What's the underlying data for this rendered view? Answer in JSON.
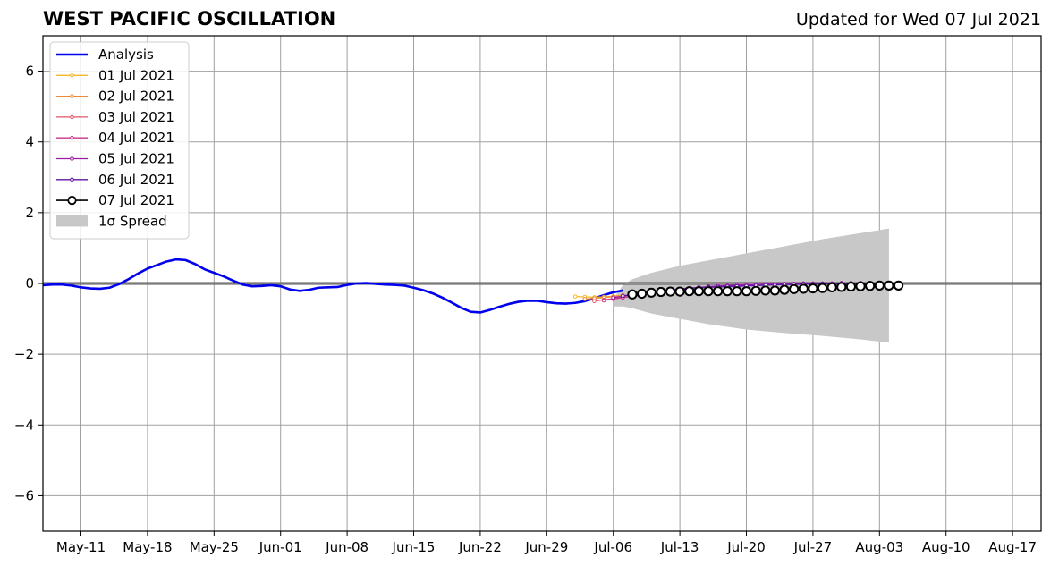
{
  "header": {
    "title": "WEST PACIFIC OSCILLATION",
    "updated": "Updated for Wed 07 Jul 2021"
  },
  "chart_data": {
    "type": "line",
    "title": "WEST PACIFIC OSCILLATION",
    "xlabel": "",
    "ylabel": "",
    "ylim": [
      -7,
      7
    ],
    "yticks": [
      -6,
      -4,
      -2,
      0,
      2,
      4,
      6
    ],
    "xlim": [
      "2021-05-07",
      "2021-08-20"
    ],
    "xtick_dates": [
      "2021-05-11",
      "2021-05-18",
      "2021-05-25",
      "2021-06-01",
      "2021-06-08",
      "2021-06-15",
      "2021-06-22",
      "2021-06-29",
      "2021-07-06",
      "2021-07-13",
      "2021-07-20",
      "2021-07-27",
      "2021-08-03",
      "2021-08-10",
      "2021-08-17"
    ],
    "xtick_labels": [
      "May-11",
      "May-18",
      "May-25",
      "Jun-01",
      "Jun-08",
      "Jun-15",
      "Jun-22",
      "Jun-29",
      "Jul-06",
      "Jul-13",
      "Jul-20",
      "Jul-27",
      "Aug-03",
      "Aug-10",
      "Aug-17"
    ],
    "grid": true,
    "legend_position": "top-left",
    "analysis": {
      "name": "Analysis",
      "color": "#0000ee",
      "x": [
        "2021-05-07",
        "2021-05-08",
        "2021-05-09",
        "2021-05-10",
        "2021-05-11",
        "2021-05-12",
        "2021-05-13",
        "2021-05-14",
        "2021-05-15",
        "2021-05-16",
        "2021-05-17",
        "2021-05-18",
        "2021-05-19",
        "2021-05-20",
        "2021-05-21",
        "2021-05-22",
        "2021-05-23",
        "2021-05-24",
        "2021-05-25",
        "2021-05-26",
        "2021-05-27",
        "2021-05-28",
        "2021-05-29",
        "2021-05-30",
        "2021-05-31",
        "2021-06-01",
        "2021-06-02",
        "2021-06-03",
        "2021-06-04",
        "2021-06-05",
        "2021-06-06",
        "2021-06-07",
        "2021-06-08",
        "2021-06-09",
        "2021-06-10",
        "2021-06-11",
        "2021-06-12",
        "2021-06-13",
        "2021-06-14",
        "2021-06-15",
        "2021-06-16",
        "2021-06-17",
        "2021-06-18",
        "2021-06-19",
        "2021-06-20",
        "2021-06-21",
        "2021-06-22",
        "2021-06-23",
        "2021-06-24",
        "2021-06-25",
        "2021-06-26",
        "2021-06-27",
        "2021-06-28",
        "2021-06-29",
        "2021-06-30",
        "2021-07-01",
        "2021-07-02",
        "2021-07-03",
        "2021-07-04",
        "2021-07-05",
        "2021-07-06",
        "2021-07-07"
      ],
      "values": [
        -0.05,
        -0.03,
        -0.03,
        -0.06,
        -0.11,
        -0.14,
        -0.15,
        -0.12,
        -0.02,
        0.12,
        0.28,
        0.42,
        0.52,
        0.62,
        0.68,
        0.66,
        0.55,
        0.4,
        0.3,
        0.2,
        0.08,
        -0.03,
        -0.08,
        -0.07,
        -0.05,
        -0.08,
        -0.17,
        -0.21,
        -0.18,
        -0.12,
        -0.11,
        -0.1,
        -0.04,
        0.0,
        0.01,
        -0.01,
        -0.03,
        -0.04,
        -0.06,
        -0.12,
        -0.19,
        -0.28,
        -0.4,
        -0.54,
        -0.69,
        -0.8,
        -0.82,
        -0.75,
        -0.66,
        -0.58,
        -0.52,
        -0.49,
        -0.49,
        -0.53,
        -0.56,
        -0.57,
        -0.55,
        -0.5,
        -0.42,
        -0.33,
        -0.25,
        -0.2
      ]
    },
    "forecasts": [
      {
        "name": "01 Jul 2021",
        "color": "#f5b829",
        "start": "2021-07-02",
        "values": [
          -0.37,
          -0.38,
          -0.39,
          -0.38,
          -0.36,
          -0.33
        ]
      },
      {
        "name": "02 Jul 2021",
        "color": "#f08a3a",
        "start": "2021-07-03",
        "values": [
          -0.44,
          -0.42,
          -0.4,
          -0.37,
          -0.34
        ]
      },
      {
        "name": "03 Jul 2021",
        "color": "#e3566a",
        "start": "2021-07-04",
        "values": [
          -0.5,
          -0.46,
          -0.43,
          -0.4,
          -0.36
        ]
      },
      {
        "name": "04 Jul 2021",
        "color": "#c83389",
        "start": "2021-07-05",
        "values": [
          -0.48,
          -0.44,
          -0.4,
          -0.36,
          -0.32,
          -0.28,
          -0.24,
          -0.2,
          -0.17,
          -0.14,
          -0.12,
          -0.1,
          -0.08,
          -0.06,
          -0.05,
          -0.04,
          -0.03,
          -0.02,
          -0.02,
          -0.01,
          -0.01,
          0.0,
          0.0,
          0.0,
          0.0,
          0.01,
          0.01,
          0.01,
          0.01,
          0.01
        ]
      },
      {
        "name": "05 Jul 2021",
        "color": "#9b1ba3",
        "start": "2021-07-06",
        "values": [
          -0.4,
          -0.36,
          -0.32,
          -0.28,
          -0.24,
          -0.21,
          -0.18,
          -0.15,
          -0.13,
          -0.11,
          -0.09,
          -0.07,
          -0.06,
          -0.05,
          -0.04,
          -0.03,
          -0.02,
          -0.02,
          -0.01,
          -0.01,
          0.0,
          0.0,
          0.0,
          0.0,
          0.01,
          0.01,
          0.01,
          0.01,
          0.01,
          0.01
        ]
      },
      {
        "name": "06 Jul 2021",
        "color": "#5b14a6",
        "start": "2021-07-07",
        "values": [
          -0.35,
          -0.31,
          -0.28,
          -0.25,
          -0.22,
          -0.19,
          -0.17,
          -0.15,
          -0.13,
          -0.11,
          -0.1,
          -0.09,
          -0.08,
          -0.07,
          -0.06,
          -0.05,
          -0.04,
          -0.03,
          -0.03,
          -0.02,
          -0.02,
          -0.01,
          -0.01,
          -0.01,
          0.0,
          0.0,
          0.0,
          0.0,
          0.0,
          0.0
        ]
      },
      {
        "name": "07 Jul 2021",
        "color": "#000000",
        "start": "2021-07-08",
        "values": [
          -0.31,
          -0.29,
          -0.26,
          -0.24,
          -0.23,
          -0.23,
          -0.22,
          -0.22,
          -0.22,
          -0.22,
          -0.22,
          -0.22,
          -0.22,
          -0.21,
          -0.2,
          -0.2,
          -0.18,
          -0.16,
          -0.15,
          -0.14,
          -0.13,
          -0.11,
          -0.1,
          -0.09,
          -0.08,
          -0.07,
          -0.06,
          -0.06,
          -0.06
        ]
      }
    ],
    "spread": {
      "name": "1σ Spread",
      "color": "#c8c8c8",
      "x": [
        "2021-07-06",
        "2021-07-07",
        "2021-07-08",
        "2021-07-10",
        "2021-07-13",
        "2021-07-16",
        "2021-07-20",
        "2021-07-24",
        "2021-07-28",
        "2021-08-01",
        "2021-08-04"
      ],
      "upper": [
        -0.45,
        -0.05,
        0.12,
        0.3,
        0.5,
        0.65,
        0.85,
        1.05,
        1.25,
        1.42,
        1.55
      ],
      "lower": [
        -0.65,
        -0.65,
        -0.7,
        -0.85,
        -1.0,
        -1.15,
        -1.3,
        -1.4,
        -1.48,
        -1.58,
        -1.67
      ]
    }
  }
}
